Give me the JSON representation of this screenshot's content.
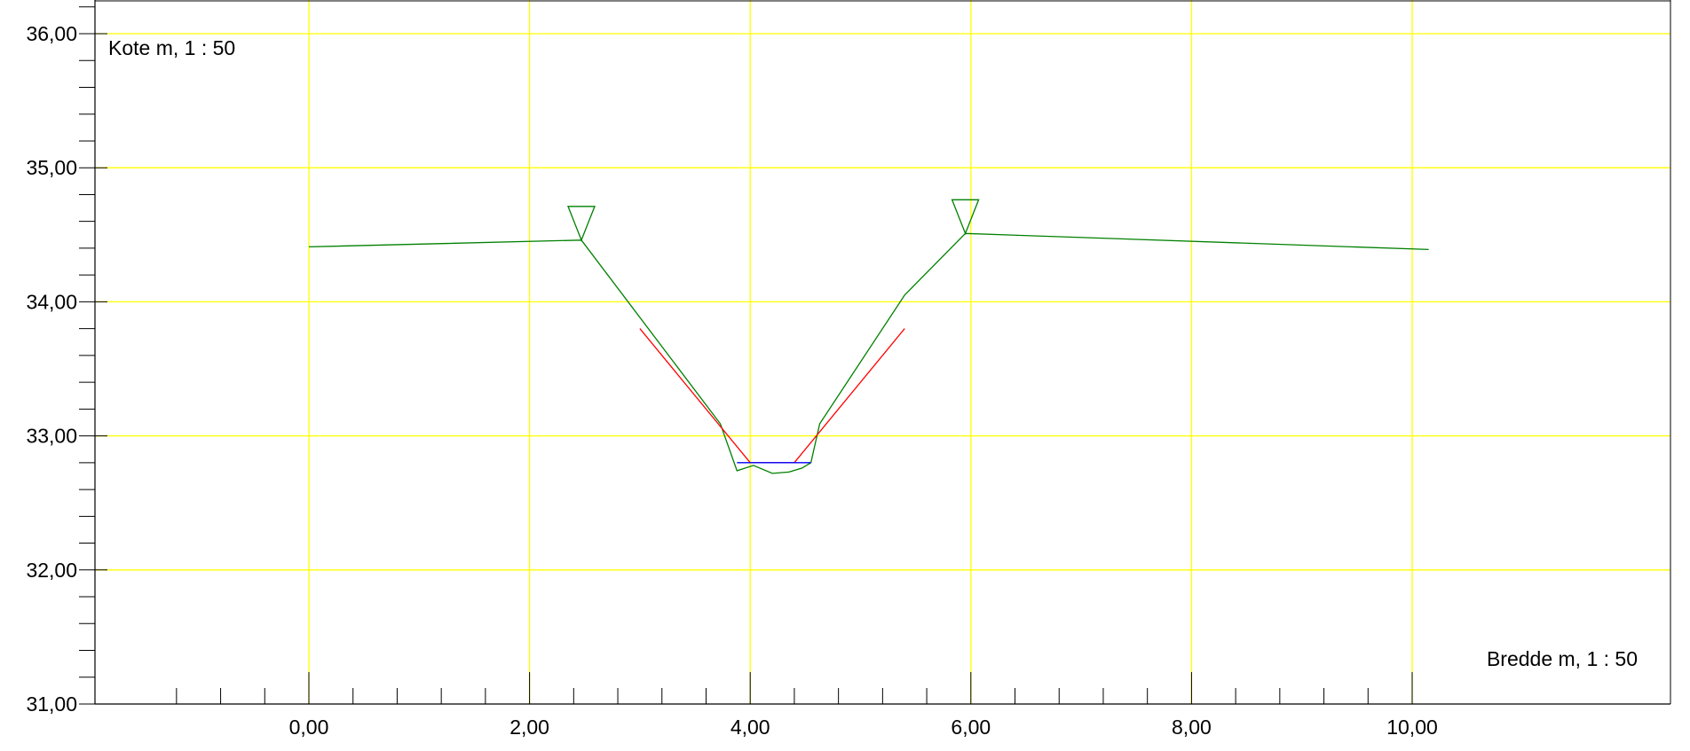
{
  "chart_data": {
    "type": "line",
    "title": "",
    "xlabel": "Bredde m, 1 : 50",
    "ylabel": "Kote m, 1 : 50",
    "xlim": [
      -1.6,
      10.15
    ],
    "ylim": [
      31.0,
      36.25
    ],
    "grid": true,
    "colors": {
      "grid": "#ffff00",
      "axes": "#000000",
      "terrain": "#008000",
      "design": "#ff0000",
      "water": "#0000ff",
      "background": "#ffffff"
    },
    "x_ticks": [
      {
        "value": 0,
        "label": "0,00"
      },
      {
        "value": 2,
        "label": "2,00"
      },
      {
        "value": 4,
        "label": "4,00"
      },
      {
        "value": 6,
        "label": "6,00"
      },
      {
        "value": 8,
        "label": "8,00"
      },
      {
        "value": 10,
        "label": "10,00"
      }
    ],
    "y_ticks": [
      {
        "value": 31,
        "label": "31,00"
      },
      {
        "value": 32,
        "label": "32,00"
      },
      {
        "value": 33,
        "label": "33,00"
      },
      {
        "value": 34,
        "label": "34,00"
      },
      {
        "value": 35,
        "label": "35,00"
      },
      {
        "value": 36,
        "label": "36,00"
      }
    ],
    "series": [
      {
        "color": "#008000",
        "points": [
          [
            0.0,
            34.41
          ],
          [
            2.47,
            34.46
          ],
          [
            3.73,
            33.09
          ],
          [
            3.88,
            32.74
          ],
          [
            4.03,
            32.78
          ],
          [
            4.2,
            32.72
          ],
          [
            4.35,
            32.73
          ],
          [
            4.47,
            32.76
          ],
          [
            4.55,
            32.8
          ],
          [
            4.63,
            33.09
          ],
          [
            5.4,
            34.05
          ],
          [
            5.95,
            34.51
          ],
          [
            10.15,
            34.39
          ]
        ]
      },
      {
        "color": "#ff0000",
        "points": [
          [
            3.0,
            33.8
          ],
          [
            4.0,
            32.8
          ],
          [
            4.4,
            32.8
          ],
          [
            5.4,
            33.8
          ]
        ]
      },
      {
        "color": "#0000ff",
        "points": [
          [
            3.88,
            32.8
          ],
          [
            4.55,
            32.8
          ]
        ]
      }
    ],
    "markers": [
      {
        "shape": "inverted-triangle",
        "x": 2.47,
        "y": 34.46
      },
      {
        "shape": "inverted-triangle",
        "x": 5.95,
        "y": 34.51
      }
    ]
  }
}
